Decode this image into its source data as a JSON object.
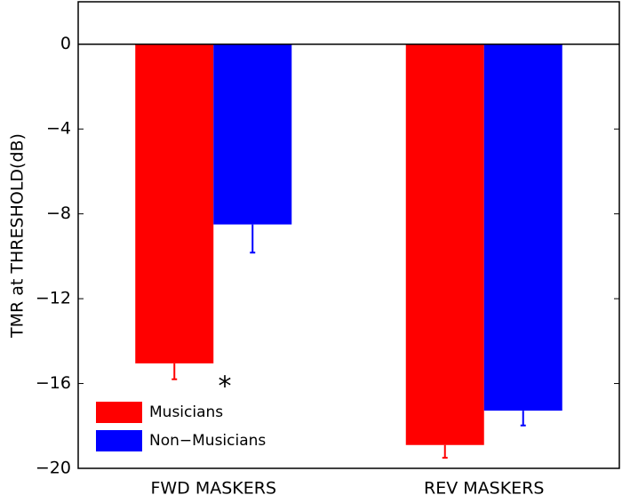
{
  "chart_data": {
    "type": "bar",
    "ylabel": "TMR at THRESHOLD(dB)",
    "categories": [
      "FWD MASKERS",
      "REV MASKERS"
    ],
    "series": [
      {
        "name": "Musicians",
        "color": "#ff0000",
        "values": [
          -15.05,
          -18.9
        ],
        "errors": [
          0.75,
          0.6
        ]
      },
      {
        "name": "Non−Musicians",
        "color": "#0000ff",
        "values": [
          -8.5,
          -17.28
        ],
        "errors": [
          1.33,
          0.7
        ]
      }
    ],
    "ylim": [
      -20,
      2
    ],
    "yticks": [
      {
        "value": -20,
        "label": "−20"
      },
      {
        "value": -16,
        "label": "−16"
      },
      {
        "value": -12,
        "label": "−12"
      },
      {
        "value": -8,
        "label": "−8"
      },
      {
        "value": -4,
        "label": "−4"
      },
      0
    ],
    "annotation": "*",
    "legend": "lower left"
  }
}
